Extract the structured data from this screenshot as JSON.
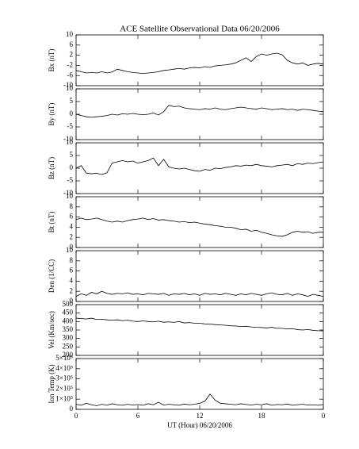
{
  "chart_data": [
    {
      "type": "line",
      "title": "ACE Satellite Observational Data   06/20/2006",
      "ylabel": "Bx (nT)",
      "color": "#000000",
      "x": [
        0,
        0.5,
        1,
        1.5,
        2,
        2.5,
        3,
        3.5,
        4,
        4.5,
        5,
        5.5,
        6,
        6.5,
        7,
        7.5,
        8,
        8.5,
        9,
        9.5,
        10,
        10.5,
        11,
        11.5,
        12,
        12.5,
        13,
        13.5,
        14,
        14.5,
        15,
        15.5,
        16,
        16.5,
        17,
        17.5,
        18,
        18.5,
        19,
        19.5,
        20,
        20.5,
        21,
        21.5,
        22,
        22.5,
        23,
        23.5,
        24
      ],
      "values": [
        -4,
        -4.5,
        -5,
        -4.8,
        -5,
        -4.5,
        -5,
        -4.6,
        -3.5,
        -4,
        -4.5,
        -4.8,
        -5,
        -5.2,
        -5,
        -4.8,
        -4.5,
        -4,
        -3.8,
        -3.5,
        -3.2,
        -3.5,
        -3,
        -2.8,
        -3,
        -2.5,
        -2.8,
        -2.2,
        -2,
        -1.8,
        -1.5,
        -1,
        0,
        1,
        -0.5,
        1.5,
        2.5,
        2,
        2.5,
        2.8,
        2.2,
        0,
        -1,
        -1.5,
        -1,
        -2,
        -1.5,
        -1.2,
        -1.5
      ],
      "ylim": [
        -10,
        10
      ],
      "yticks": [
        -10,
        -6,
        -2,
        2,
        6,
        10
      ]
    },
    {
      "type": "line",
      "ylabel": "By (nT)",
      "color": "#000000",
      "x": [
        0,
        0.5,
        1,
        1.5,
        2,
        2.5,
        3,
        3.5,
        4,
        4.5,
        5,
        5.5,
        6,
        6.5,
        7,
        7.5,
        8,
        8.5,
        9,
        9.5,
        10,
        10.5,
        11,
        11.5,
        12,
        12.5,
        13,
        13.5,
        14,
        14.5,
        15,
        15.5,
        16,
        16.5,
        17,
        17.5,
        18,
        18.5,
        19,
        19.5,
        20,
        20.5,
        21,
        21.5,
        22,
        22.5,
        23,
        23.5,
        24
      ],
      "values": [
        0,
        -0.5,
        -1,
        -1.2,
        -1,
        -0.8,
        -0.5,
        0,
        -0.3,
        0.2,
        0,
        0.3,
        0,
        -0.2,
        0,
        0.5,
        -0.3,
        1,
        3.5,
        3,
        3.2,
        2.5,
        2.2,
        2,
        1.8,
        2.2,
        2,
        2.5,
        2,
        1.8,
        2.2,
        2.5,
        2.8,
        2.5,
        2.2,
        2,
        2.5,
        2.2,
        1.8,
        2,
        2.2,
        1.8,
        2,
        1.5,
        2,
        1.8,
        1.5,
        1.2,
        1
      ],
      "ylim": [
        -10,
        10
      ],
      "yticks": [
        -10,
        -5,
        0,
        5,
        10
      ]
    },
    {
      "type": "line",
      "ylabel": "Bz (nT)",
      "color": "#000000",
      "x": [
        0,
        0.5,
        1,
        1.5,
        2,
        2.5,
        3,
        3.5,
        4,
        4.5,
        5,
        5.5,
        6,
        6.5,
        7,
        7.5,
        8,
        8.5,
        9,
        9.5,
        10,
        10.5,
        11,
        11.5,
        12,
        12.5,
        13,
        13.5,
        14,
        14.5,
        15,
        15.5,
        16,
        16.5,
        17,
        17.5,
        18,
        18.5,
        19,
        19.5,
        20,
        20.5,
        21,
        21.5,
        22,
        22.5,
        23,
        23.5,
        24
      ],
      "values": [
        0,
        1,
        -2,
        -2.2,
        -2,
        -2.5,
        -1.8,
        2,
        2.5,
        3,
        2.5,
        2.8,
        2,
        2.5,
        3,
        4,
        1,
        3.5,
        0.5,
        0,
        -0.3,
        0,
        -0.5,
        -1,
        -1.2,
        -0.5,
        -0.8,
        0,
        -0.2,
        0.3,
        0.5,
        1,
        0.8,
        1.2,
        1,
        1.5,
        1,
        0.8,
        0.5,
        1,
        1.2,
        1.5,
        1,
        1.8,
        1.5,
        2,
        1.8,
        2.2,
        2.5
      ],
      "ylim": [
        -10,
        10
      ],
      "yticks": [
        -10,
        -5,
        0,
        5,
        10
      ]
    },
    {
      "type": "line",
      "ylabel": "Bt (nT)",
      "color": "#000000",
      "x": [
        0,
        0.5,
        1,
        1.5,
        2,
        2.5,
        3,
        3.5,
        4,
        4.5,
        5,
        5.5,
        6,
        6.5,
        7,
        7.5,
        8,
        8.5,
        9,
        9.5,
        10,
        10.5,
        11,
        11.5,
        12,
        12.5,
        13,
        13.5,
        14,
        14.5,
        15,
        15.5,
        16,
        16.5,
        17,
        17.5,
        18,
        18.5,
        19,
        19.5,
        20,
        20.5,
        21,
        21.5,
        22,
        22.5,
        23,
        23.5,
        24
      ],
      "values": [
        5.5,
        5.8,
        5.5,
        5.6,
        5.8,
        5.5,
        5.2,
        5,
        5.2,
        5,
        5.3,
        5.5,
        5.6,
        5.8,
        5.5,
        5.7,
        5.4,
        5.5,
        5.3,
        5.2,
        5,
        5.1,
        4.9,
        5,
        4.8,
        4.6,
        4.5,
        4.3,
        4.2,
        4,
        4,
        3.8,
        3.5,
        3.6,
        3.2,
        3.4,
        3,
        2.8,
        2.5,
        2.3,
        2.2,
        2.5,
        3,
        3.2,
        3,
        3.1,
        2.8,
        3,
        3
      ],
      "ylim": [
        0,
        10
      ],
      "yticks": [
        0,
        2,
        4,
        6,
        8,
        10
      ]
    },
    {
      "type": "line",
      "ylabel": "Den (1/CC)",
      "color": "#000000",
      "x": [
        0,
        0.5,
        1,
        1.5,
        2,
        2.5,
        3,
        3.5,
        4,
        4.5,
        5,
        5.5,
        6,
        6.5,
        7,
        7.5,
        8,
        8.5,
        9,
        9.5,
        10,
        10.5,
        11,
        11.5,
        12,
        12.5,
        13,
        13.5,
        14,
        14.5,
        15,
        15.5,
        16,
        16.5,
        17,
        17.5,
        18,
        18.5,
        19,
        19.5,
        20,
        20.5,
        21,
        21.5,
        22,
        22.5,
        23,
        23.5,
        24
      ],
      "values": [
        1,
        1.5,
        1.2,
        1.8,
        1.5,
        2,
        1.6,
        1.4,
        1.6,
        1.5,
        1.7,
        1.4,
        1.5,
        1.3,
        1.6,
        1.5,
        1.4,
        1.6,
        1.2,
        1.5,
        1.4,
        1.6,
        1.3,
        1.5,
        1.2,
        1.6,
        1.4,
        1.5,
        1.3,
        1.6,
        1.4,
        1.2,
        1.5,
        1.3,
        1.6,
        1.4,
        1.2,
        1.5,
        1.7,
        1.4,
        1.3,
        1.6,
        1.2,
        1.5,
        1.3,
        1,
        1.4,
        1.2,
        1
      ],
      "ylim": [
        0,
        10
      ],
      "yticks": [
        0,
        2,
        4,
        6,
        8,
        10
      ]
    },
    {
      "type": "line",
      "ylabel": "Vel (Km/sec)",
      "color": "#000000",
      "x": [
        0,
        0.5,
        1,
        1.5,
        2,
        2.5,
        3,
        3.5,
        4,
        4.5,
        5,
        5.5,
        6,
        6.5,
        7,
        7.5,
        8,
        8.5,
        9,
        9.5,
        10,
        10.5,
        11,
        11.5,
        12,
        12.5,
        13,
        13.5,
        14,
        14.5,
        15,
        15.5,
        16,
        16.5,
        17,
        17.5,
        18,
        18.5,
        19,
        19.5,
        20,
        20.5,
        21,
        21.5,
        22,
        22.5,
        23,
        23.5,
        24
      ],
      "values": [
        420,
        418,
        415,
        420,
        412,
        414,
        410,
        408,
        410,
        405,
        408,
        402,
        400,
        404,
        400,
        398,
        402,
        396,
        398,
        395,
        400,
        392,
        394,
        390,
        390,
        386,
        385,
        382,
        380,
        378,
        375,
        374,
        370,
        372,
        368,
        366,
        365,
        362,
        366,
        360,
        360,
        356,
        358,
        352,
        350,
        353,
        348,
        346,
        345
      ],
      "ylim": [
        200,
        500
      ],
      "yticks": [
        200,
        250,
        300,
        350,
        400,
        450,
        500
      ]
    },
    {
      "type": "line",
      "ylabel": "Ion Temp (K)",
      "color": "#000000",
      "x": [
        0,
        0.5,
        1,
        1.5,
        2,
        2.5,
        3,
        3.5,
        4,
        4.5,
        5,
        5.5,
        6,
        6.5,
        7,
        7.5,
        8,
        8.5,
        9,
        9.5,
        10,
        10.5,
        11,
        11.5,
        12,
        12.5,
        13,
        13.5,
        14,
        14.5,
        15,
        15.5,
        16,
        16.5,
        17,
        17.5,
        18,
        18.5,
        19,
        19.5,
        20,
        20.5,
        21,
        21.5,
        22,
        22.5,
        23,
        23.5,
        24
      ],
      "values": [
        50000,
        40000,
        60000,
        45000,
        35000,
        50000,
        40000,
        55000,
        45000,
        40000,
        50000,
        42000,
        48000,
        40000,
        55000,
        45000,
        70000,
        42000,
        50000,
        45000,
        40000,
        52000,
        45000,
        50000,
        60000,
        80000,
        150000,
        90000,
        60000,
        55000,
        50000,
        45000,
        55000,
        48000,
        42000,
        50000,
        45000,
        55000,
        40000,
        48000,
        45000,
        52000,
        40000,
        46000,
        50000,
        42000,
        45000,
        40000,
        48000
      ],
      "ylim": [
        0,
        500000
      ],
      "yticks": [
        0,
        {
          "value": 100000,
          "label": "1×10⁵"
        },
        {
          "value": 200000,
          "label": "2×10⁵"
        },
        {
          "value": 300000,
          "label": "3×10⁵"
        },
        {
          "value": 400000,
          "label": "4×10⁵"
        },
        {
          "value": 500000,
          "label": "5×10⁵"
        }
      ],
      "xlim": [
        0,
        24
      ],
      "xticks": [
        0,
        6,
        12,
        18,
        {
          "value": 24,
          "label": "0"
        }
      ],
      "xlabel": "UT (Hour)  06/20/2006"
    }
  ]
}
